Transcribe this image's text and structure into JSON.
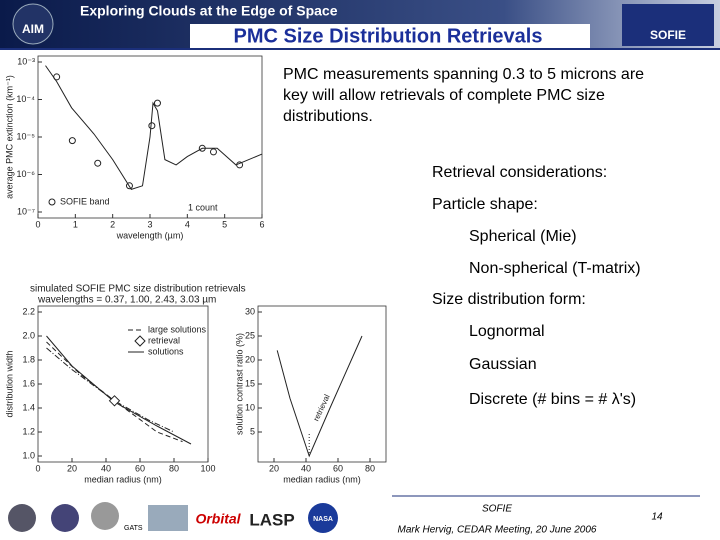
{
  "header": {
    "logo_left": "AIM",
    "banner": "Exploring Clouds at the Edge of Space",
    "title": "PMC Size Distribution Retrievals",
    "logo_right": "SOFIE"
  },
  "body": {
    "intro": [
      "PMC measurements spanning 0.3 to 5 microns are",
      "key will allow retrievals of complete PMC size",
      "distributions."
    ],
    "items": [
      {
        "text": "Retrieval considerations:",
        "level": 1
      },
      {
        "text": "Particle shape:",
        "level": 1
      },
      {
        "text": "Spherical (Mie)",
        "level": 2
      },
      {
        "text": "Non-spherical (T-matrix)",
        "level": 2
      },
      {
        "text": "Size distribution form:",
        "level": 1
      },
      {
        "text": "Lognormal",
        "level": 2
      },
      {
        "text": "Gaussian",
        "level": 2
      },
      {
        "text": "Discrete (# bins = # λ's)",
        "level": 2
      }
    ]
  },
  "figure_caption": [
    "simulated SOFIE PMC size distribution retrievals",
    "wavelengths = 0.37, 1.00, 2.43, 3.03 µm"
  ],
  "figures": [
    {
      "ylabel": "average PMC extinction (km⁻¹)",
      "xlabel": "wavelength (µm)",
      "xlim": [
        0,
        6
      ],
      "ylim": [
        1e-07,
        0.001
      ],
      "ylog": true,
      "xticks": [
        0,
        1,
        2,
        3,
        4,
        5,
        6
      ],
      "yticks": [
        {
          "value": 0.001,
          "label": "10⁻³"
        },
        {
          "value": 0.0001,
          "label": "10⁻⁴"
        },
        {
          "value": 1e-05,
          "label": "10⁻⁵"
        },
        {
          "value": 1e-06,
          "label": "10⁻⁶"
        },
        {
          "value": 1e-07,
          "label": "10⁻⁷"
        }
      ],
      "series": [
        {
          "x": [
            0.2,
            0.5,
            0.9,
            1.5,
            2.0,
            2.5,
            2.8,
            3.0,
            3.08,
            3.2,
            3.4,
            3.7,
            4.0,
            4.4,
            4.8,
            5.3,
            6.0
          ],
          "y": [
            0.0008,
            0.0003,
            6e-05,
            1.2e-05,
            2.5e-06,
            4e-07,
            5e-07,
            1e-05,
            8e-05,
            5e-05,
            2.5e-06,
            1.8e-06,
            3e-06,
            5e-06,
            5e-06,
            1.8e-06,
            3.5e-06
          ],
          "style": "solid"
        }
      ],
      "markers": {
        "x": [
          0.5,
          0.92,
          1.6,
          2.45,
          3.05,
          3.2,
          4.4,
          4.7,
          5.4
        ],
        "y": [
          0.0004,
          8e-06,
          2e-06,
          5e-07,
          2e-05,
          8e-05,
          5e-06,
          4e-06,
          1.8e-06
        ],
        "shape": "circle"
      },
      "legend": [
        {
          "text": "SOFIE band",
          "shape": "circle"
        }
      ],
      "annotation": "1 count"
    },
    {
      "ylabel": "distribution width",
      "xlabel": "median radius (nm)",
      "xlim": [
        0,
        100
      ],
      "ylim": [
        1.0,
        2.2
      ],
      "ylog": false,
      "xticks": [
        0,
        20,
        40,
        60,
        80,
        100
      ],
      "yticks": [
        {
          "value": 1.0,
          "label": "1.0"
        },
        1.2,
        1.4,
        1.6,
        1.8,
        {
          "value": 2.0,
          "label": "2.0"
        },
        2.2
      ],
      "series": [
        {
          "x": [
            5,
            20,
            45,
            70,
            90
          ],
          "y": [
            2.0,
            1.75,
            1.45,
            1.25,
            1.1
          ],
          "style": "solid"
        },
        {
          "x": [
            5,
            25,
            45,
            70,
            85
          ],
          "y": [
            1.95,
            1.68,
            1.46,
            1.2,
            1.12
          ],
          "style": "dashed"
        },
        {
          "x": [
            5,
            20,
            45,
            65,
            80
          ],
          "y": [
            1.9,
            1.72,
            1.46,
            1.3,
            1.2
          ],
          "style": "dashdot"
        }
      ],
      "markers": {
        "x": [
          45
        ],
        "y": [
          1.46
        ],
        "shape": "diamond"
      },
      "legend": [
        {
          "text": "large solutions",
          "shape": "dashed"
        },
        {
          "text": "retrieval",
          "shape": "diamond"
        },
        {
          "text": "solutions",
          "shape": "solid"
        }
      ]
    },
    {
      "ylabel": "solution contrast ratio (%)",
      "xlabel": "median radius (nm)",
      "xlim": [
        10,
        90
      ],
      "ylim": [
        0,
        30
      ],
      "ylog": false,
      "xticks": [
        20,
        40,
        60,
        80
      ],
      "yticks": [
        5,
        10,
        15,
        20,
        25,
        30
      ],
      "series": [
        {
          "x": [
            22,
            30,
            42,
            55,
            75
          ],
          "y": [
            22,
            12,
            0,
            10,
            25
          ],
          "style": "solid"
        },
        {
          "x": [
            42,
            42
          ],
          "y": [
            0,
            5
          ],
          "style": "dotted"
        }
      ],
      "annotation": "retrieval"
    }
  ],
  "footer": {
    "logos": [
      "GATS",
      "Orbital",
      "LASP",
      "NASA"
    ],
    "project": "SOFIE",
    "credit": "Mark Hervig, CEDAR Meeting, 20 June 2006",
    "page": "14"
  }
}
